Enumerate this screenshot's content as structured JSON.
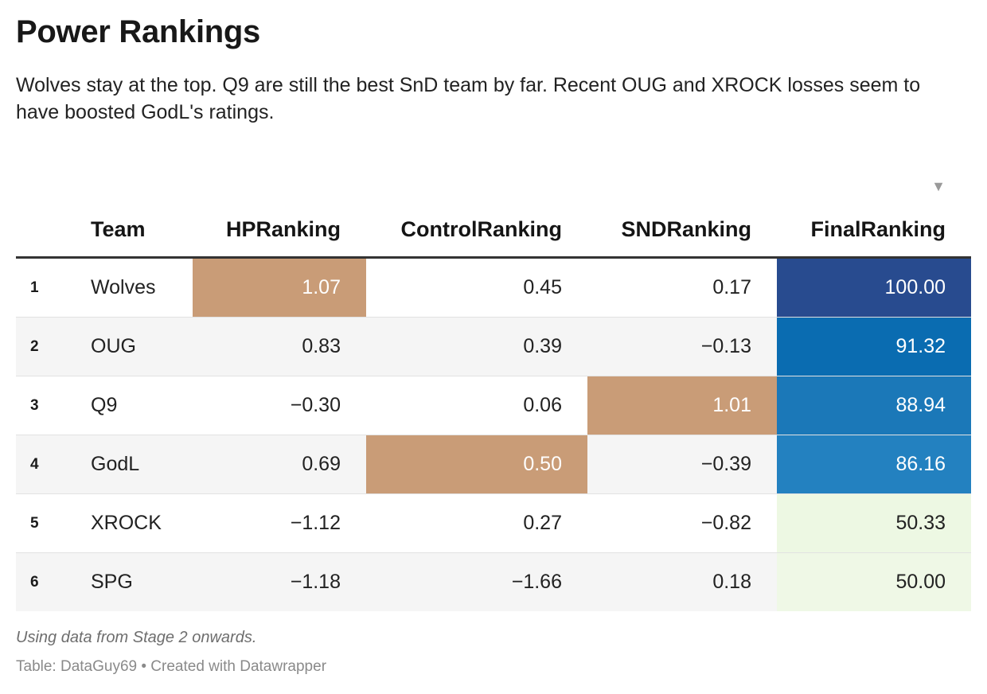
{
  "title": "Power Rankings",
  "subtitle": "Wolves stay at the top. Q9 are still the best SnD team by far. Recent OUG and XROCK losses seem to have boosted GodL's ratings.",
  "sort_icon": "sort-descending-icon",
  "sort_glyph": "▼",
  "caption": "Using data from Stage 2 onwards.",
  "credit": "Table: DataGuy69 • Created with Datawrapper",
  "colors": {
    "highlight": "#c99c77",
    "final_scale": [
      "#284b8f",
      "#0a6cb1",
      "#1b78b8",
      "#2381c0",
      "#edf8e3",
      "#eff8e6"
    ]
  },
  "chart_data": {
    "type": "table",
    "columns": [
      "",
      "Team",
      "HPRanking",
      "ControlRanking",
      "SNDRanking",
      "FinalRanking"
    ],
    "sorted_by": "FinalRanking",
    "sort_order": "descending",
    "rows": [
      {
        "rank": "1",
        "team": "Wolves",
        "hp": "1.07",
        "control": "0.45",
        "snd": "0.17",
        "final": "100.00",
        "max_in": "hp",
        "final_color": "#284b8f",
        "final_text": "#ffffff"
      },
      {
        "rank": "2",
        "team": "OUG",
        "hp": "0.83",
        "control": "0.39",
        "snd": "−0.13",
        "final": "91.32",
        "max_in": "",
        "final_color": "#0a6cb1",
        "final_text": "#ffffff"
      },
      {
        "rank": "3",
        "team": "Q9",
        "hp": "−0.30",
        "control": "0.06",
        "snd": "1.01",
        "final": "88.94",
        "max_in": "snd",
        "final_color": "#1b78b8",
        "final_text": "#ffffff"
      },
      {
        "rank": "4",
        "team": "GodL",
        "hp": "0.69",
        "control": "0.50",
        "snd": "−0.39",
        "final": "86.16",
        "max_in": "control",
        "final_color": "#2381c0",
        "final_text": "#ffffff"
      },
      {
        "rank": "5",
        "team": "XROCK",
        "hp": "−1.12",
        "control": "0.27",
        "snd": "−0.82",
        "final": "50.33",
        "max_in": "",
        "final_color": "#edf8e3",
        "final_text": "#222222"
      },
      {
        "rank": "6",
        "team": "SPG",
        "hp": "−1.18",
        "control": "−1.66",
        "snd": "0.18",
        "final": "50.00",
        "max_in": "",
        "final_color": "#eff8e6",
        "final_text": "#222222"
      }
    ]
  }
}
